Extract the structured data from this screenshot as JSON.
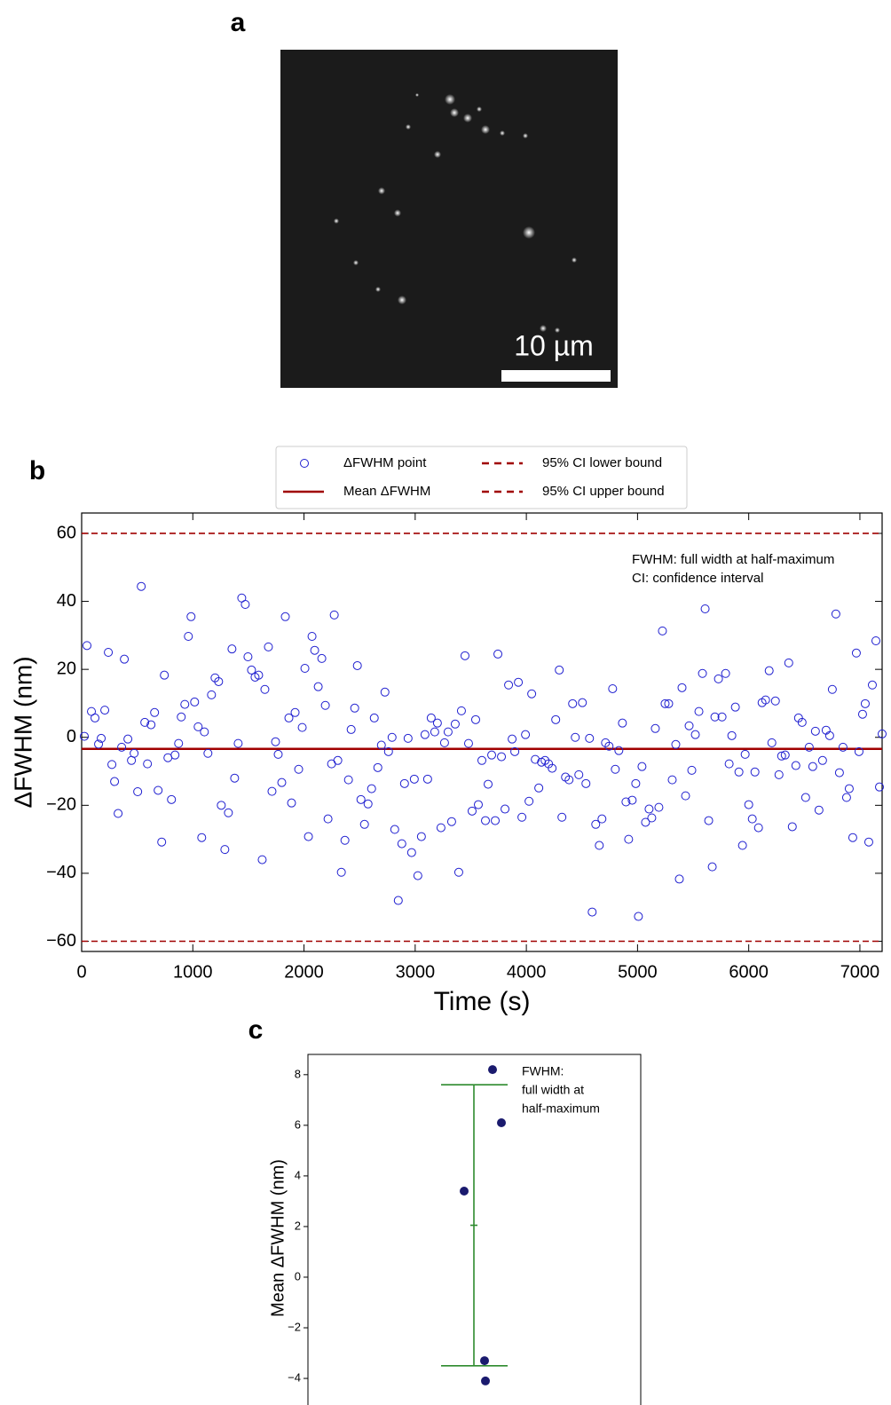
{
  "panel_labels": [
    "a",
    "b",
    "c"
  ],
  "image": {
    "scale_bar_label": "10 µm"
  },
  "chart_data": [
    {
      "type": "scatter",
      "xlabel": "Time (s)",
      "ylabel": "ΔFWHM (nm)",
      "annotation": [
        "FWHM: full width at half-maximum",
        "CI: confidence interval"
      ],
      "xlim": [
        0,
        7200
      ],
      "ylim": [
        -63,
        66
      ],
      "xticks": [
        0,
        1000,
        2000,
        3000,
        4000,
        5000,
        6000,
        7000
      ],
      "yticks": [
        {
          "value": -60,
          "label": "−60"
        },
        {
          "value": -40,
          "label": "−40"
        },
        {
          "value": -20,
          "label": "−20"
        },
        0,
        20,
        40,
        60
      ],
      "x": [
        24,
        48,
        88,
        120,
        152,
        176,
        208,
        240,
        272,
        296,
        328,
        360,
        384,
        416,
        448,
        472,
        504,
        536,
        568,
        592,
        624,
        656,
        688,
        720,
        744,
        776,
        808,
        840,
        872,
        896,
        928,
        960,
        984,
        1016,
        1048,
        1080,
        1104,
        1136,
        1168,
        1200,
        1232,
        1256,
        1288,
        1320,
        1352,
        1376,
        1408,
        1440,
        1472,
        1496,
        1528,
        1560,
        1592,
        1624,
        1648,
        1680,
        1712,
        1744,
        1768,
        1800,
        1832,
        1864,
        1888,
        1920,
        1952,
        1984,
        2008,
        2040,
        2072,
        2096,
        2128,
        2160,
        2192,
        2216,
        2248,
        2272,
        2304,
        2336,
        2368,
        2400,
        2424,
        2456,
        2480,
        2512,
        2544,
        2576,
        2608,
        2632,
        2664,
        2696,
        2728,
        2760,
        2792,
        2816,
        2848,
        2880,
        2904,
        2936,
        2968,
        2992,
        3024,
        3056,
        3088,
        3112,
        3144,
        3176,
        3200,
        3232,
        3264,
        3296,
        3328,
        3360,
        3392,
        3416,
        3448,
        3480,
        3512,
        3544,
        3568,
        3600,
        3632,
        3656,
        3688,
        3720,
        3744,
        3776,
        3808,
        3840,
        3872,
        3896,
        3928,
        3960,
        3992,
        4024,
        4048,
        4080,
        4112,
        4136,
        4168,
        4200,
        4232,
        4264,
        4296,
        4320,
        4352,
        4384,
        4416,
        4440,
        4472,
        4504,
        4536,
        4568,
        4592,
        4624,
        4656,
        4680,
        4712,
        4744,
        4776,
        4800,
        4832,
        4864,
        4896,
        4920,
        4952,
        4984,
        5008,
        5040,
        5072,
        5104,
        5128,
        5160,
        5192,
        5224,
        5248,
        5280,
        5312,
        5344,
        5376,
        5400,
        5432,
        5464,
        5488,
        5520,
        5552,
        5584,
        5608,
        5640,
        5672,
        5696,
        5728,
        5760,
        5792,
        5824,
        5848,
        5880,
        5912,
        5944,
        5968,
        6000,
        6032,
        6056,
        6088,
        6120,
        6152,
        6184,
        6208,
        6240,
        6272,
        6296,
        6328,
        6360,
        6392,
        6424,
        6448,
        6480,
        6512,
        6544,
        6576,
        6600,
        6632,
        6664,
        6696,
        6728,
        6752,
        6784,
        6816,
        6848,
        6880,
        6904,
        6936,
        6968,
        6992,
        7024,
        7048,
        7080,
        7112,
        7144,
        7176,
        7200
      ],
      "series": [
        {
          "name": "ΔFWHM point",
          "color": "#1f1fd0",
          "values": [
            0.3,
            27,
            7.6,
            5.7,
            -2,
            -0.3,
            8,
            25,
            -8,
            -13,
            -22.4,
            -2.9,
            23,
            -0.5,
            -6.8,
            -4.7,
            -16,
            44.4,
            4.4,
            -7.8,
            3.7,
            7.3,
            -15.6,
            -30.8,
            18.3,
            -6,
            -18.3,
            -5.2,
            -1.8,
            6,
            9.7,
            29.7,
            35.5,
            10.4,
            3.1,
            -29.5,
            1.6,
            -4.7,
            12.5,
            17.5,
            16.4,
            -20,
            -33,
            -22.2,
            26,
            -12,
            -1.8,
            41,
            39.1,
            23.7,
            19.8,
            17.7,
            18.3,
            -36,
            14.1,
            26.6,
            -15.9,
            -1.3,
            -5,
            -13.3,
            35.5,
            5.7,
            -19.3,
            7.3,
            -9.4,
            2.9,
            20.3,
            -29.2,
            29.7,
            25.6,
            14.9,
            23.2,
            9.4,
            -24,
            -7.8,
            36,
            -6.8,
            -39.7,
            -30.3,
            -12.5,
            2.3,
            8.6,
            21.1,
            -18.3,
            -25.6,
            -19.6,
            -15.1,
            5.7,
            -8.9,
            -2.3,
            13.3,
            -4.2,
            0,
            -27.1,
            -48,
            -31.3,
            -13.6,
            -0.3,
            -33.9,
            -12.3,
            -40.7,
            -29.2,
            0.8,
            -12.3,
            5.7,
            1.6,
            4.2,
            -26.6,
            -1.6,
            1.6,
            -24.8,
            3.9,
            -39.7,
            7.8,
            24,
            -1.8,
            -21.7,
            5.2,
            -19.8,
            -6.8,
            -24.5,
            -13.8,
            -5.2,
            -24.5,
            24.5,
            -5.7,
            -21.1,
            15.4,
            -0.5,
            -4.2,
            16.2,
            -23.5,
            0.8,
            -18.8,
            12.8,
            -6.5,
            -14.9,
            -7.3,
            -6.8,
            -7.8,
            -9.1,
            5.2,
            19.8,
            -23.5,
            -11.7,
            -12.5,
            9.9,
            0,
            -11,
            10.2,
            -13.6,
            -0.3,
            -51.4,
            -25.6,
            -31.8,
            -24,
            -1.6,
            -2.6,
            14.3,
            -9.4,
            -3.9,
            4.2,
            -19,
            -30,
            -18.5,
            -13.6,
            -52.7,
            -8.6,
            -25,
            -21.1,
            -23.7,
            2.6,
            -20.6,
            31.3,
            9.9,
            9.9,
            -12.5,
            -2.1,
            -41.7,
            14.6,
            -17.2,
            3.4,
            -9.7,
            0.8,
            7.6,
            18.8,
            37.8,
            -24.5,
            -38.1,
            6,
            17.2,
            6,
            18.8,
            -7.8,
            0.5,
            8.9,
            -10.2,
            -31.8,
            -5,
            -19.8,
            -24,
            -10.2,
            -26.6,
            10.2,
            11,
            19.6,
            -1.6,
            10.7,
            -11,
            -5.5,
            -5.2,
            21.9,
            -26.3,
            -8.3,
            5.7,
            4.4,
            -17.7,
            -2.9,
            -8.6,
            1.8,
            -21.4,
            -6.8,
            2.1,
            0.5,
            14.1,
            36.3,
            -10.4,
            -2.9,
            -17.7,
            -15.1,
            -29.5,
            24.8,
            -4.2,
            6.8,
            9.9,
            -30.8,
            15.4,
            28.4,
            -14.6,
            1
          ]
        }
      ],
      "hlines": [
        {
          "name": "Mean ΔFWHM",
          "value": -3.4,
          "color": "#a00000",
          "style": "solid"
        },
        {
          "name": "95% CI lower bound",
          "value": -60,
          "color": "#a00000",
          "style": "dashed"
        },
        {
          "name": "95% CI upper bound",
          "value": 60,
          "color": "#a00000",
          "style": "dashed"
        }
      ]
    },
    {
      "type": "strip",
      "ylabel": "Mean ΔFWHM (nm)",
      "annotation": [
        "FWHM:",
        "full width at",
        "half-maximum"
      ],
      "ylim": [
        -5.05,
        8.8
      ],
      "yticks": [
        {
          "value": -4,
          "label": "−4"
        },
        {
          "value": -2,
          "label": "−2"
        },
        0,
        2,
        4,
        6,
        8
      ],
      "values": [
        8.2,
        6.1,
        3.4,
        -3.3,
        -4.1
      ],
      "color": "#1a1a6e",
      "mean": 2.05,
      "ci": [
        -3.5,
        7.6
      ],
      "error_color": "#2e8b2e"
    }
  ]
}
